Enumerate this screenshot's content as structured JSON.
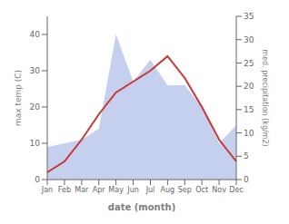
{
  "chart_data": {
    "type": "line",
    "categories": [
      "Jan",
      "Feb",
      "Mar",
      "Apr",
      "May",
      "Jun",
      "Jul",
      "Aug",
      "Sep",
      "Oct",
      "Nov",
      "Dec"
    ],
    "series": [
      {
        "type": "area",
        "color": "#c5d0ee",
        "values": [
          9,
          10,
          11,
          14,
          40,
          27,
          33,
          26,
          26,
          20,
          10,
          15
        ]
      },
      {
        "type": "line",
        "color": "#cc3333",
        "values": [
          2,
          5,
          11,
          18,
          24,
          27,
          30,
          34,
          28,
          20,
          11,
          5
        ]
      }
    ],
    "xlabel": "date (month)",
    "ylabel": "max temp (C)",
    "y2label": "med. precipitation (kg/m2)",
    "ylim": [
      0,
      45
    ],
    "yticks": [
      0,
      10,
      20,
      30,
      40
    ],
    "y2lim": [
      0,
      35
    ],
    "y2ticks": [
      0,
      5,
      10,
      15,
      20,
      25,
      30,
      35
    ],
    "grid": false
  }
}
